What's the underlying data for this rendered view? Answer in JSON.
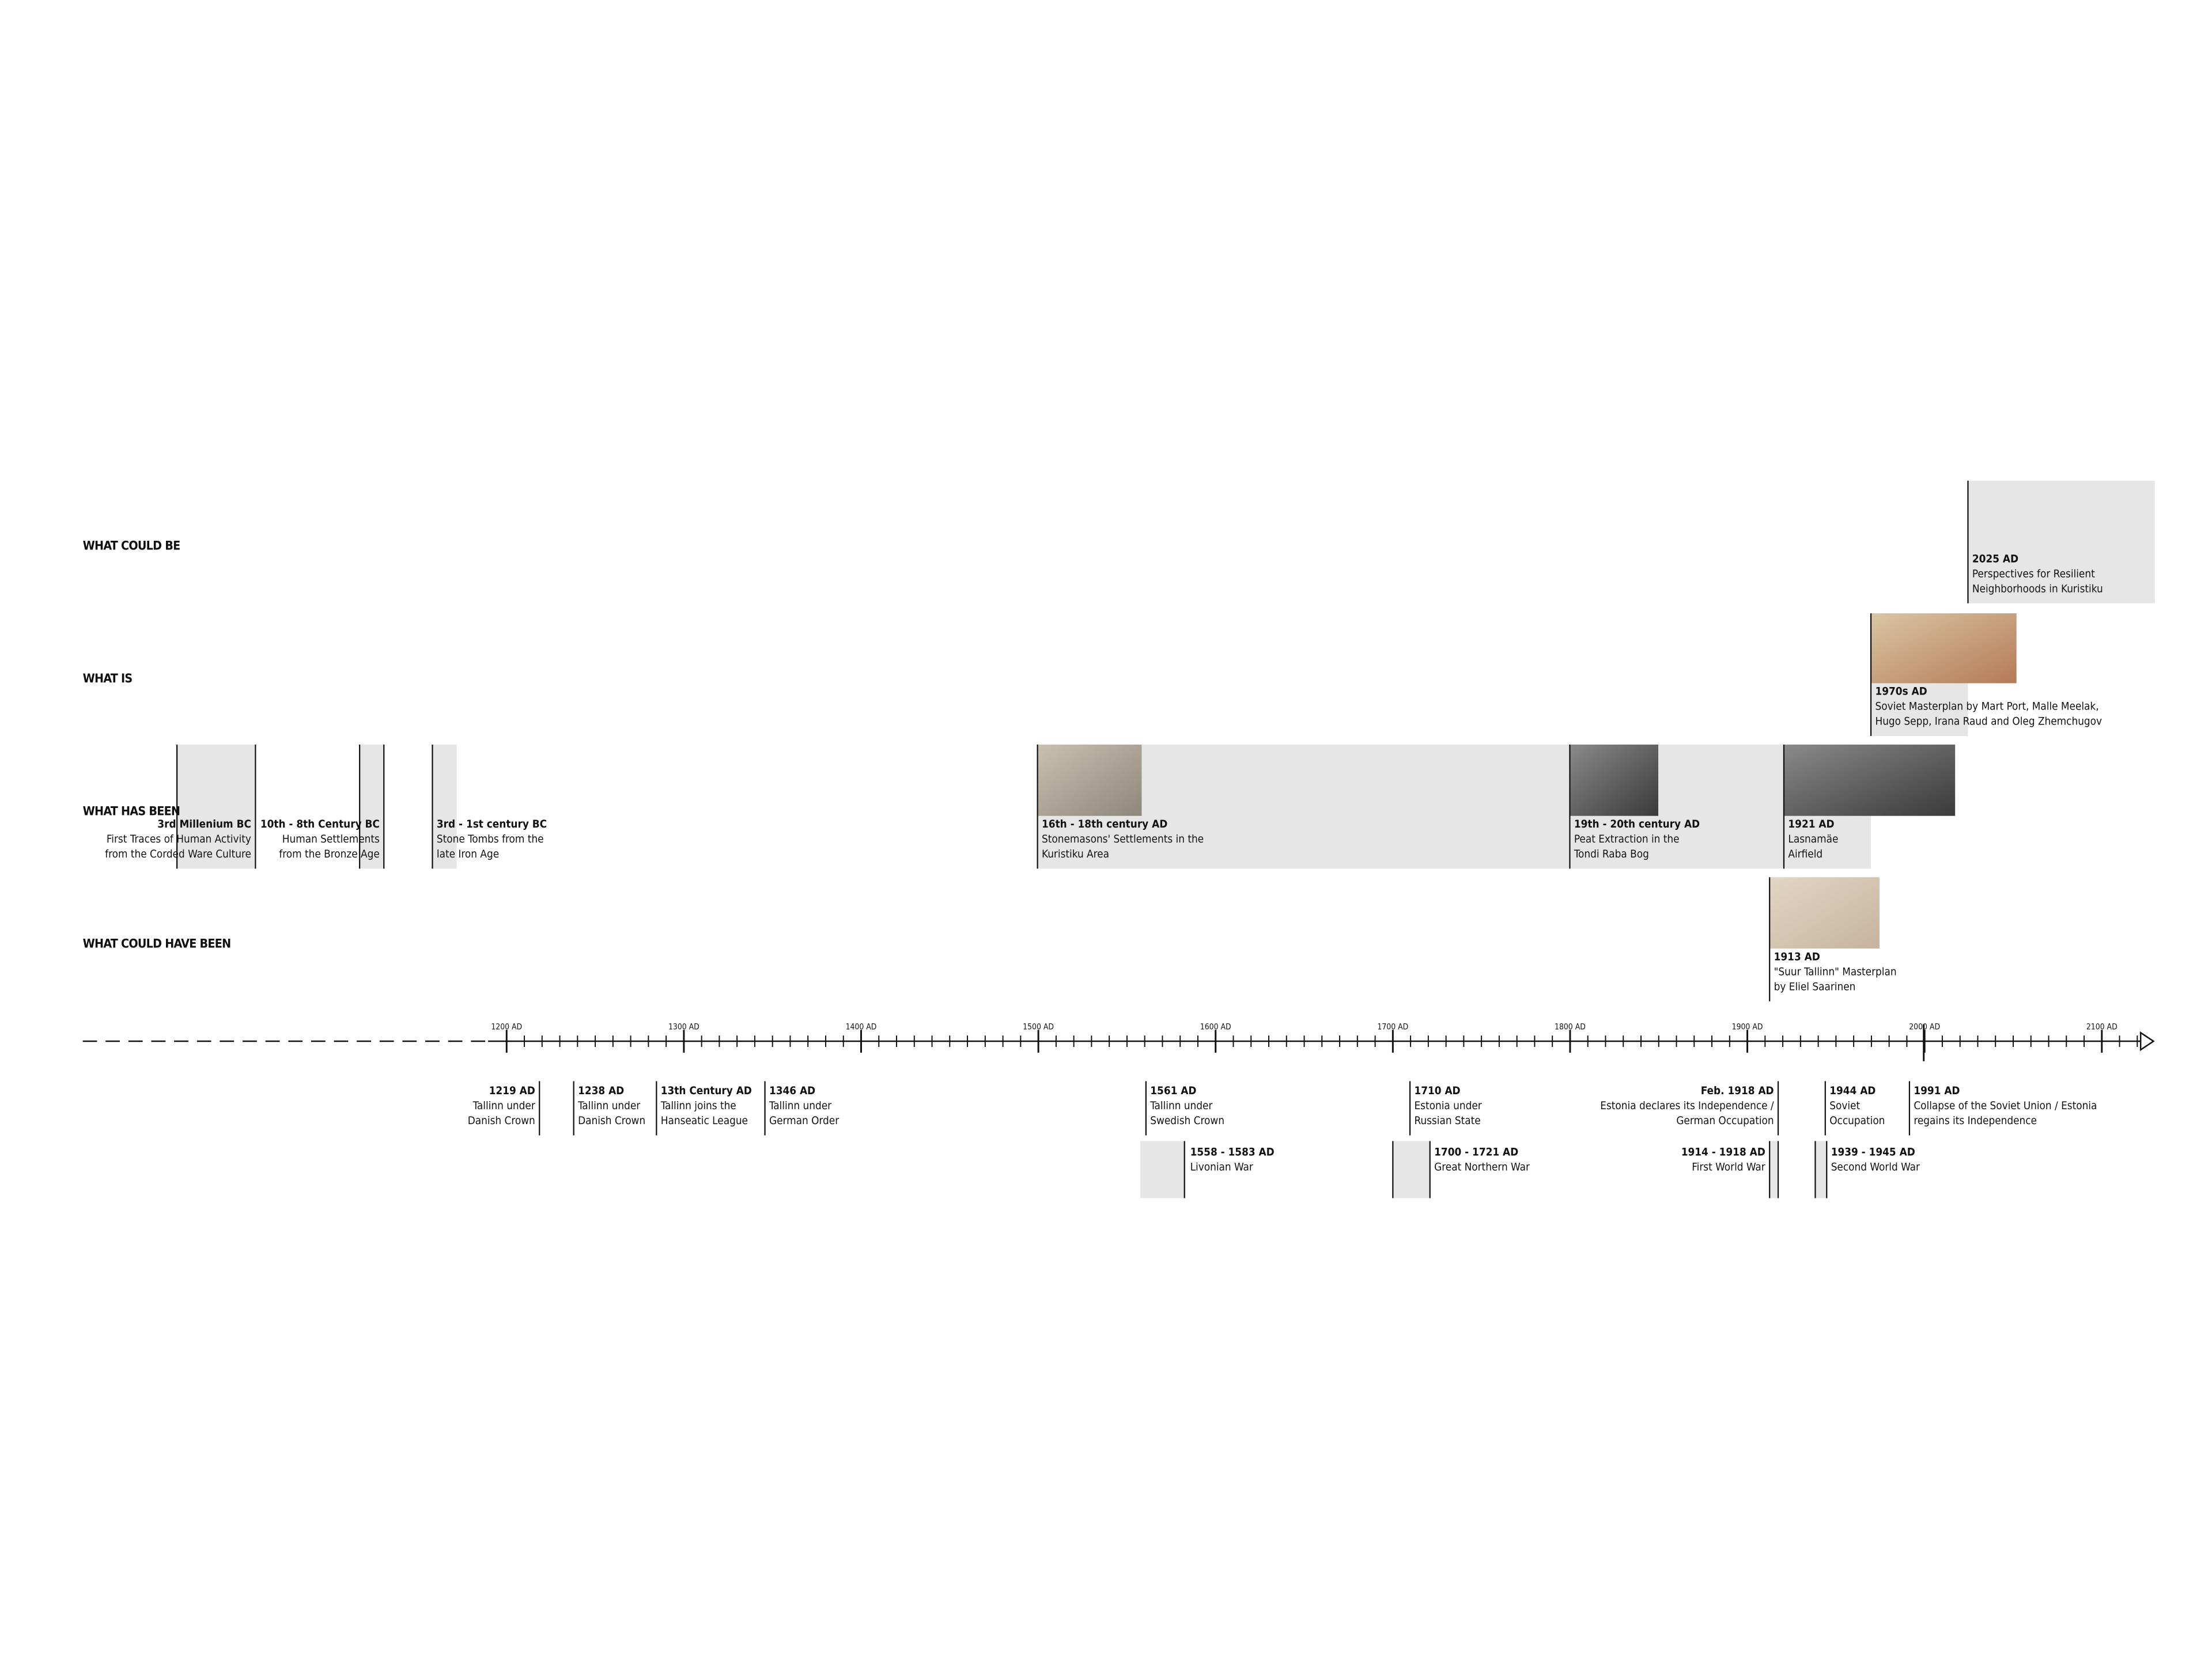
{
  "rows": [
    "WHAT COULD BE",
    "WHAT IS",
    "WHAT HAS BEEN",
    "WHAT COULD HAVE BEEN"
  ],
  "axis_labels": [
    "1200 AD",
    "1300 AD",
    "1400 AD",
    "1500 AD",
    "1600 AD",
    "1700 AD",
    "1800 AD",
    "1900 AD",
    "2000 AD",
    "2100 AD"
  ],
  "events_above": [
    {
      "date": "3rd Millenium BC",
      "text": [
        "First Traces of Human Activity",
        "from the Corded Ware Culture"
      ]
    },
    {
      "date": "10th - 8th Century BC",
      "text": [
        "Human Settlements",
        "from the Bronze Age"
      ]
    },
    {
      "date": "3rd - 1st century BC",
      "text": [
        "Stone Tombs from the",
        "late Iron Age"
      ]
    },
    {
      "date": "16th - 18th century AD",
      "text": [
        "Stonemasons' Settlements in the",
        "Kuristiku Area"
      ]
    },
    {
      "date": "19th - 20th century AD",
      "text": [
        "Peat Extraction in the",
        "Tondi Raba Bog"
      ]
    },
    {
      "date": "1921 AD",
      "text": [
        "Lasnamäe",
        "Airfield"
      ]
    },
    {
      "date": "1970s AD",
      "text": [
        "Soviet Masterplan by Mart Port, Malle Meelak,",
        "Hugo Sepp, Irana Raud and Oleg Zhemchugov"
      ]
    },
    {
      "date": "2025 AD",
      "text": [
        "Perspectives for Resilient",
        "Neighborhoods in Kuristiku"
      ]
    },
    {
      "date": "1913 AD",
      "text": [
        "\"Suur Tallinn\" Masterplan",
        "by Eliel Saarinen"
      ]
    }
  ],
  "events_below": [
    {
      "date": "1219 AD",
      "text": [
        "Tallinn under",
        "Danish Crown"
      ]
    },
    {
      "date": "1238 AD",
      "text": [
        "Tallinn under",
        "Danish Crown"
      ]
    },
    {
      "date": "13th Century AD",
      "text": [
        "Tallinn joins the",
        "Hanseatic League"
      ]
    },
    {
      "date": "1346 AD",
      "text": [
        "Tallinn under",
        "German Order"
      ]
    },
    {
      "date": "1561 AD",
      "text": [
        "Tallinn under",
        "Swedish Crown"
      ]
    },
    {
      "date": "1710 AD",
      "text": [
        "Estonia under",
        "Russian State"
      ]
    },
    {
      "date": "Feb. 1918 AD",
      "text": [
        "Estonia declares its Independence /",
        "German Occupation"
      ]
    },
    {
      "date": "1944 AD",
      "text": [
        "Soviet",
        "Occupation"
      ]
    },
    {
      "date": "1991 AD",
      "text": [
        "Collapse of the Soviet Union / Estonia",
        "regains its Independence"
      ]
    },
    {
      "date": "1558 - 1583 AD",
      "text": [
        "Livonian War"
      ]
    },
    {
      "date": "1700 - 1721 AD",
      "text": [
        "Great Northern War"
      ]
    },
    {
      "date": "1914 - 1918 AD",
      "text": [
        "First World War"
      ]
    },
    {
      "date": "1939 - 1945 AD",
      "text": [
        "Second World War"
      ]
    }
  ]
}
